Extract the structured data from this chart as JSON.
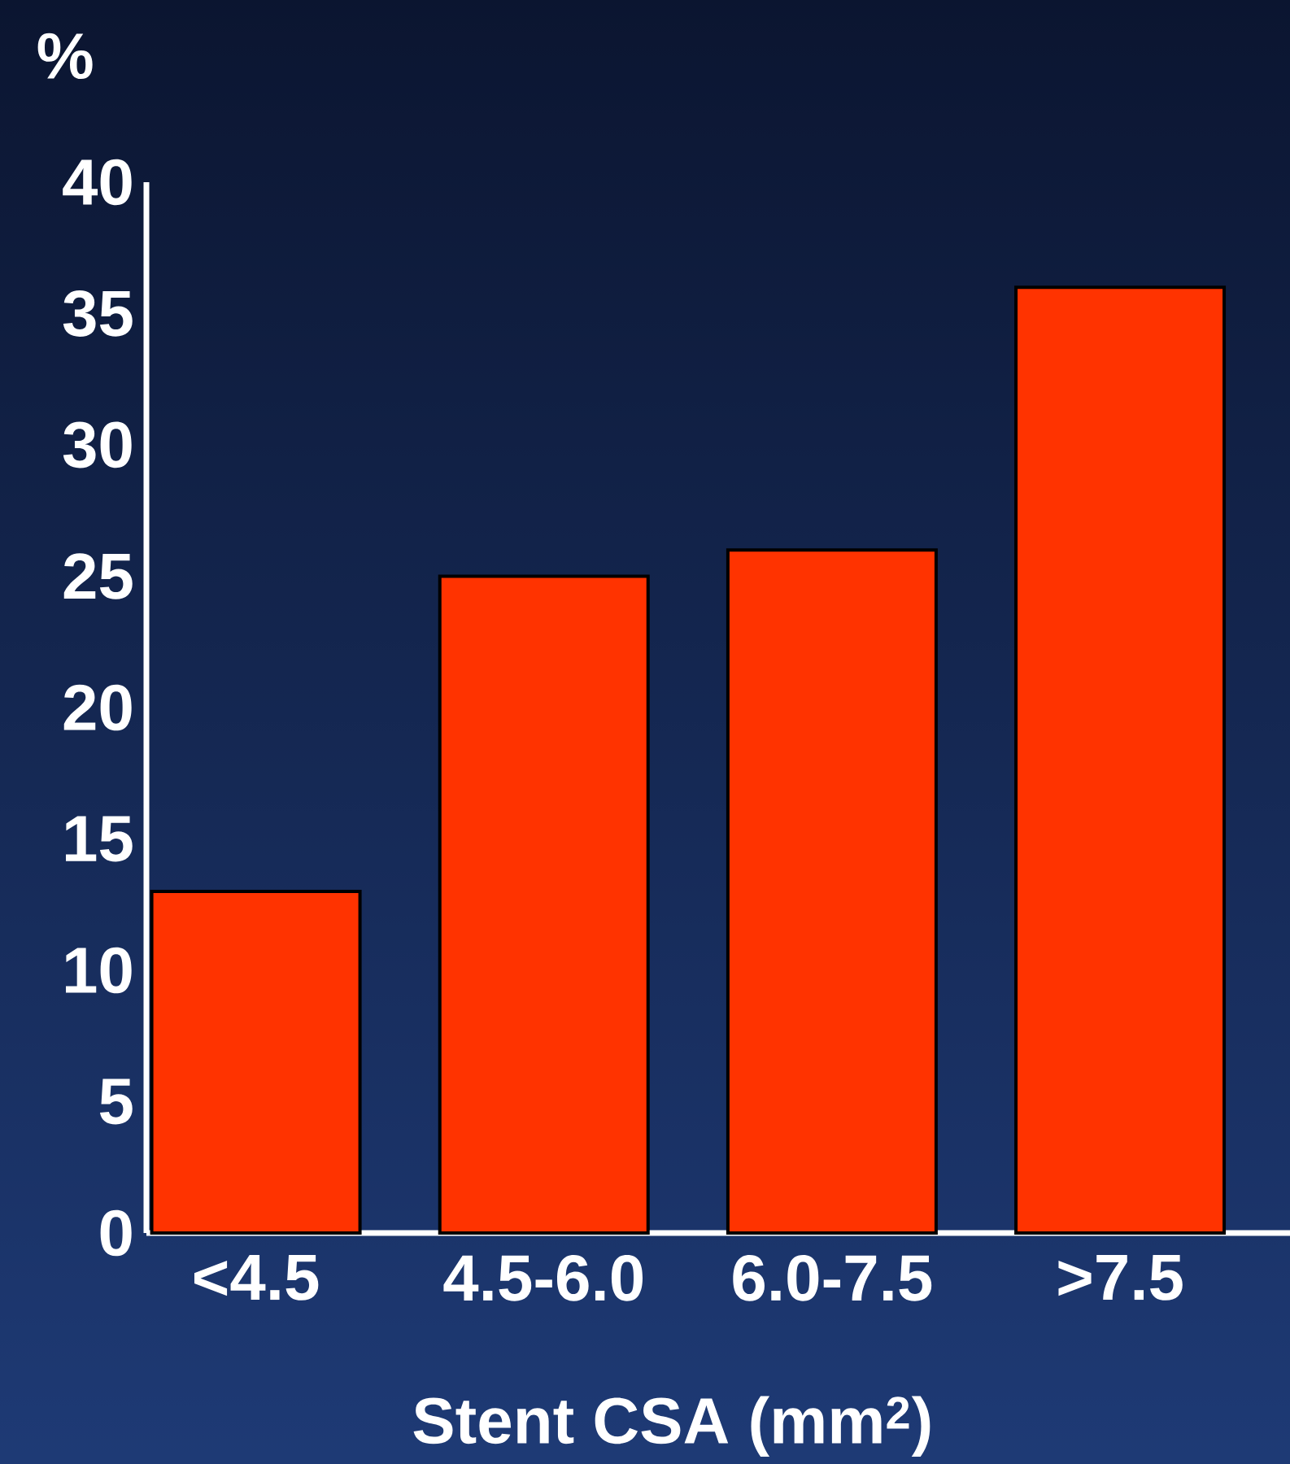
{
  "chart_data": {
    "type": "bar",
    "ylabel": "%",
    "xlabel": "Stent CSA (mm$^{2}$)",
    "categories": [
      "<4.5",
      "4.5-6.0",
      "6.0-7.5",
      ">7.5"
    ],
    "values": [
      13,
      25,
      26,
      36
    ],
    "color": "#ff3300",
    "ylim": [
      0,
      40
    ],
    "yticks": [
      0,
      5,
      10,
      15,
      20,
      25,
      30,
      35,
      40
    ]
  }
}
